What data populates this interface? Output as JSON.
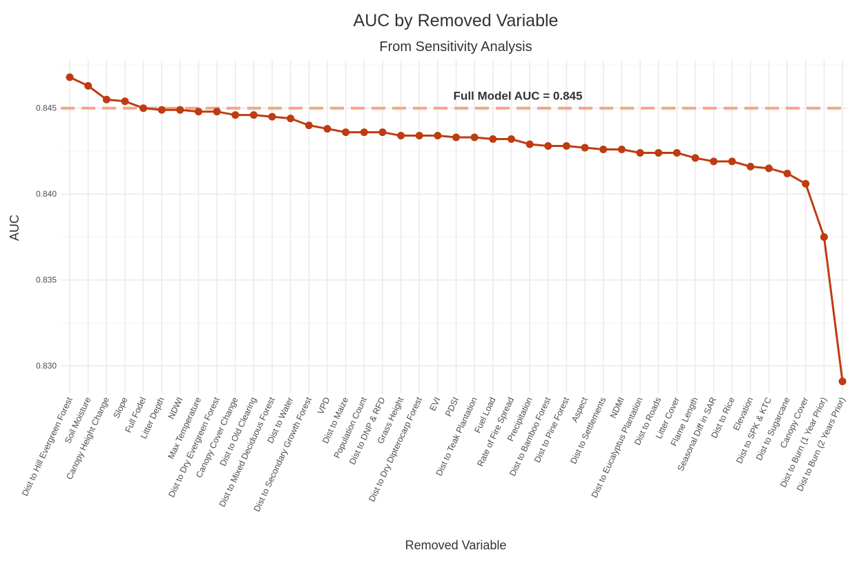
{
  "chart_data": {
    "type": "line",
    "title": "AUC by Removed Variable",
    "subtitle": "From Sensitivity Analysis",
    "x_label": "Removed Variable",
    "y_label": "AUC",
    "categories": [
      "Dist to Hill Evergreen Forest",
      "Soil Moisture",
      "Canopy Height Change",
      "Slope",
      "Full Fodel",
      "Litter Depth",
      "NDWI",
      "Max Temperature",
      "Dist to Dry Evergreen Forest",
      "Canopy Cover Change",
      "Dist to Old Clearing",
      "Dist to Mixed Deciduous Forest",
      "Dist to Water",
      "Dist to Secondary Growth Forest",
      "VPD",
      "Dist to Maize",
      "Population Count",
      "Dist to DNP & RFD",
      "Grass Height",
      "Dist to Dry Dipterocarp Forest",
      "EVI",
      "PDSI",
      "Dist to Teak Plantation",
      "Fuel Load",
      "Rate of Fire Spread",
      "Precipitation",
      "Dist to Bamboo Forest",
      "Dist to Pine Forest",
      "Aspect",
      "Dist to Settlements",
      "NDMI",
      "Dist to Eucalyptus Plantation",
      "Dist to Roads",
      "Litter Cover",
      "Flame Length",
      "Seasonal Diff in SAR",
      "Dist to Rice",
      "Elevation",
      "Dist to SPK & KTC",
      "Dist to Sugarcane",
      "Canopy Cover",
      "Dist to Burn (1 Year Prior)",
      "Dist to Burn (2 Years Prior)"
    ],
    "series": [
      {
        "name": "AUC",
        "color": "#bf3b12",
        "values": [
          0.8468,
          0.8463,
          0.8455,
          0.8454,
          0.845,
          0.8449,
          0.8449,
          0.8448,
          0.8448,
          0.8446,
          0.8446,
          0.8445,
          0.8444,
          0.844,
          0.8438,
          0.8436,
          0.8436,
          0.8436,
          0.8434,
          0.8434,
          0.8434,
          0.8433,
          0.8433,
          0.8432,
          0.8432,
          0.8429,
          0.8428,
          0.8428,
          0.8427,
          0.8426,
          0.8426,
          0.8424,
          0.8424,
          0.8424,
          0.8421,
          0.8419,
          0.8419,
          0.8416,
          0.8415,
          0.8412,
          0.8406,
          0.8375,
          0.8291
        ]
      }
    ],
    "reference_line": {
      "value": 0.845,
      "label": "Full Model AUC = 0.845",
      "color": "#f4a582"
    },
    "ylim": [
      0.8284,
      0.8478
    ],
    "yticks": [
      {
        "value": 0.83,
        "label": "0.830"
      },
      0.835,
      {
        "value": 0.84,
        "label": "0.840"
      },
      0.845
    ],
    "grid": true
  }
}
